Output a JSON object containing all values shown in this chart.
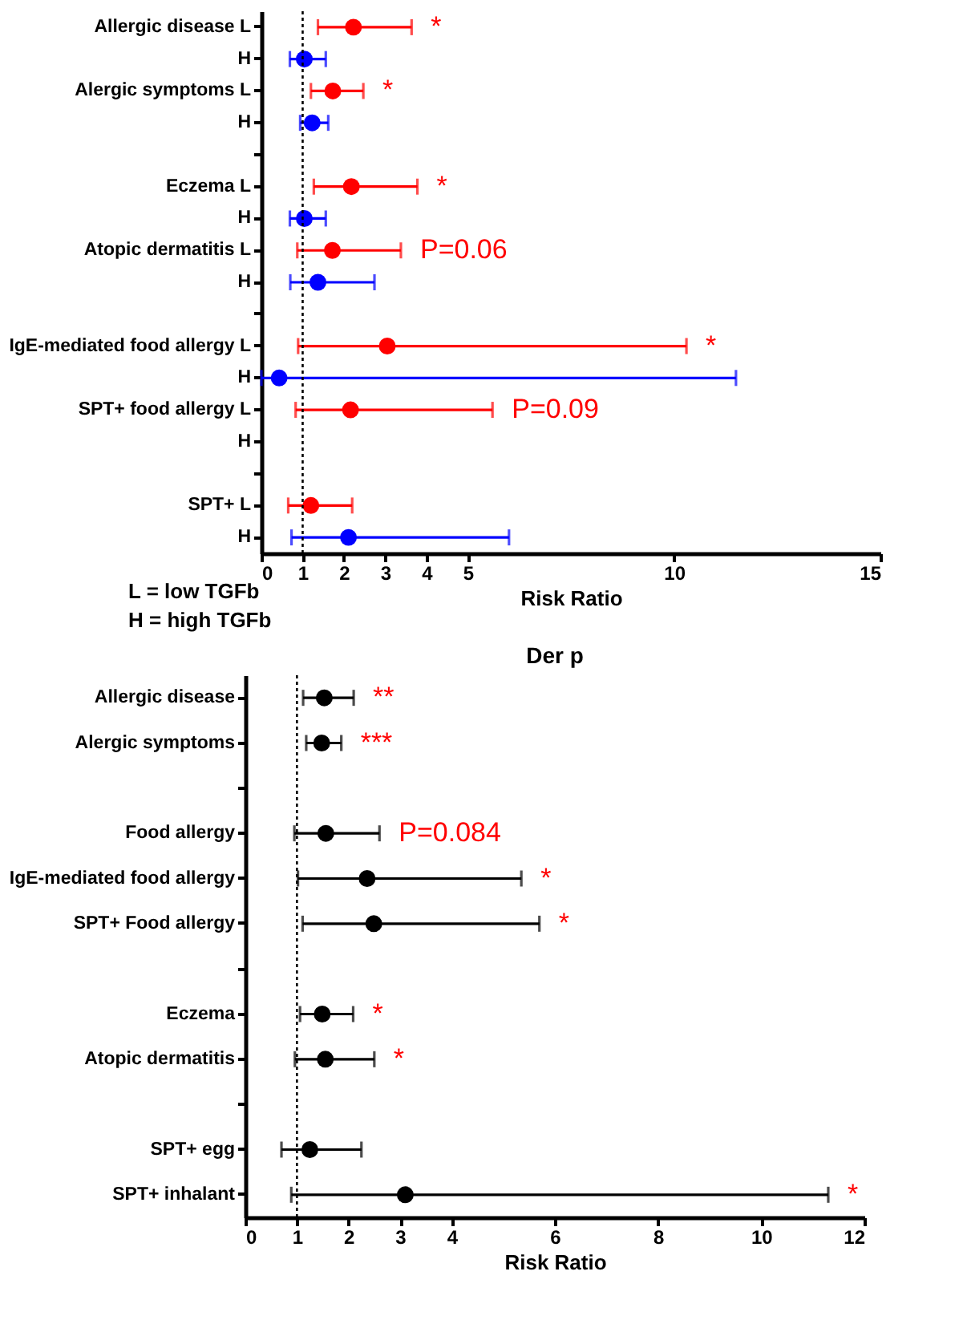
{
  "chart_data": [
    {
      "type": "scatter",
      "orientation": "horizontal",
      "xlabel": "Risk Ratio",
      "categories": [
        "Allergic disease L",
        "H",
        "Alergic symptoms L",
        "H",
        null,
        "Eczema L",
        "H",
        "Atopic dermatitis L",
        "H",
        null,
        "IgE-mediated food allergy L",
        "H",
        "SPT+ food allergy L",
        "H",
        null,
        "SPT+ L",
        "H"
      ],
      "series": [
        {
          "color": "#ff0000",
          "values": [
            2.23,
            null,
            1.73,
            null,
            null,
            2.18,
            null,
            1.72,
            null,
            null,
            3.05,
            null,
            2.16,
            null,
            null,
            1.2,
            null
          ],
          "errors": [
            [
              1.37,
              3.64
            ],
            null,
            [
              1.2,
              2.47
            ],
            null,
            null,
            [
              1.27,
              3.78
            ],
            null,
            [
              0.87,
              3.38
            ],
            null,
            null,
            [
              0.89,
              10.3
            ],
            null,
            [
              0.83,
              5.6
            ],
            null,
            null,
            [
              0.65,
              2.2
            ],
            null
          ]
        },
        {
          "color": "#0000ff",
          "values": [
            null,
            1.04,
            null,
            1.23,
            null,
            null,
            1.04,
            null,
            1.37,
            null,
            null,
            0.43,
            null,
            null,
            null,
            null,
            2.11
          ],
          "errors": [
            null,
            [
              0.69,
              1.56
            ],
            null,
            [
              0.94,
              1.62
            ],
            null,
            null,
            [
              0.69,
              1.56
            ],
            null,
            [
              0.7,
              2.74
            ],
            null,
            null,
            [
              0,
              11.5
            ],
            null,
            null,
            null,
            null,
            [
              0.73,
              6.0
            ]
          ]
        }
      ],
      "xlim": [
        0,
        15
      ],
      "xticks": [
        0,
        1,
        2,
        3,
        4,
        5,
        10,
        15
      ],
      "marker": "circle",
      "ref_lines": [
        {
          "axis": "x",
          "value": 1,
          "line_style": "dotted"
        }
      ],
      "annotations": [
        {
          "text": "*",
          "x": 3.64,
          "y": "Allergic disease L"
        },
        {
          "text": "*",
          "x": 2.47,
          "y": "Alergic symptoms L"
        },
        {
          "text": "*",
          "x": 3.78,
          "y": "Eczema L"
        },
        {
          "text": "P=0.06",
          "x": 3.38,
          "y": "Atopic dermatitis L"
        },
        {
          "text": "*",
          "x": 10.3,
          "y": "IgE-mediated food allergy L"
        },
        {
          "text": "P=0.09",
          "x": 5.6,
          "y": "SPT+ food allergy L"
        },
        "L = low TGFb",
        "H = high TGFb"
      ]
    },
    {
      "type": "scatter",
      "orientation": "horizontal",
      "title": "Der p",
      "xlabel": "Risk Ratio",
      "categories": [
        "Allergic disease",
        "Alergic symptoms",
        null,
        "Food allergy",
        "IgE-mediated food allergy",
        "SPT+ Food allergy",
        null,
        "Eczema",
        "Atopic dermatitis",
        null,
        "SPT+ egg",
        "SPT+ inhalant"
      ],
      "series": [
        {
          "color": "#000000",
          "values": [
            1.53,
            1.48,
            null,
            1.56,
            2.36,
            2.49,
            null,
            1.49,
            1.55,
            null,
            1.25,
            3.1
          ],
          "errors": [
            [
              1.12,
              2.1
            ],
            [
              1.18,
              1.86
            ],
            null,
            [
              0.95,
              2.6
            ],
            [
              1.02,
              5.35
            ],
            [
              1.11,
              5.7
            ],
            null,
            [
              1.06,
              2.09
            ],
            [
              0.96,
              2.5
            ],
            null,
            [
              0.7,
              2.25
            ],
            [
              0.89,
              11.3
            ]
          ]
        }
      ],
      "xlim": [
        0,
        12
      ],
      "xticks": [
        0,
        1,
        2,
        3,
        4,
        6,
        8,
        10,
        12
      ],
      "marker": "circle",
      "ref_lines": [
        {
          "axis": "x",
          "value": 1,
          "line_style": "dotted"
        }
      ],
      "annotations": [
        {
          "text": "**",
          "x": 2.1,
          "y": "Allergic disease"
        },
        {
          "text": "***",
          "x": 1.86,
          "y": "Alergic symptoms"
        },
        {
          "text": "P=0.084",
          "x": 2.6,
          "y": "Food allergy"
        },
        {
          "text": "*",
          "x": 5.35,
          "y": "IgE-mediated food allergy"
        },
        {
          "text": "*",
          "x": 5.7,
          "y": "SPT+ Food allergy"
        },
        {
          "text": "*",
          "x": 2.09,
          "y": "Eczema"
        },
        {
          "text": "*",
          "x": 2.5,
          "y": "Atopic dermatitis"
        },
        {
          "text": "*",
          "x": 11.3,
          "y": "SPT+ inhalant"
        }
      ]
    }
  ]
}
